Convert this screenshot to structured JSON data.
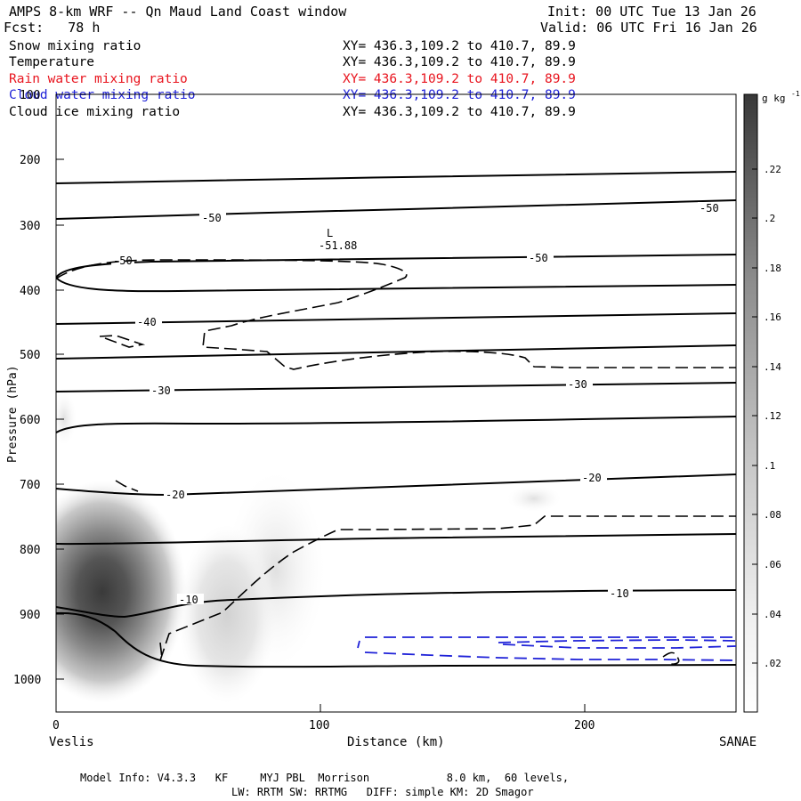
{
  "header": {
    "title": "AMPS 8-km WRF -- Qn Maud Land Coast window",
    "init": "Init: 00 UTC Tue 13 Jan 26",
    "fcst": "Fcst:   78 h",
    "valid": "Valid: 06 UTC Fri 16 Jan 26"
  },
  "fields": [
    {
      "name": "Snow mixing ratio",
      "xy": "XY= 436.3,109.2 to 410.7, 89.9",
      "color": "#000000"
    },
    {
      "name": "Temperature",
      "xy": "XY= 436.3,109.2 to 410.7, 89.9",
      "color": "#000000"
    },
    {
      "name": "Rain water mixing ratio",
      "xy": "XY= 436.3,109.2 to 410.7, 89.9",
      "color": "#e8141e"
    },
    {
      "name": "Cloud water mixing ratio",
      "xy": "XY= 436.3,109.2 to 410.7, 89.9",
      "color": "#1f22d8"
    },
    {
      "name": "Cloud ice mixing ratio",
      "xy": "XY= 436.3,109.2 to 410.7, 89.9",
      "color": "#000000"
    }
  ],
  "chart_data": {
    "type": "cross-section",
    "xlabel": "Distance (km)",
    "ylabel": "Pressure (hPa)",
    "xlim": [
      0,
      257
    ],
    "ylim": [
      1050,
      100
    ],
    "xticks": [
      0,
      100,
      200
    ],
    "yticks": [
      100,
      200,
      300,
      400,
      500,
      600,
      700,
      800,
      900,
      1000
    ],
    "left_endpoint": "Veslis",
    "right_endpoint": "SANAE",
    "low_label": "L",
    "low_value": "-51.88",
    "contour_labels": [
      "-50",
      "-50",
      "-50",
      "-50",
      "-40",
      "-30",
      "-30",
      "-20",
      "-20",
      "-10",
      "-10"
    ],
    "colorbar": {
      "unit": "g kg",
      "unit_exp": "-1",
      "min": 0,
      "max": 0.24,
      "ticks": [
        ".02",
        ".04",
        ".06",
        ".08",
        ".1",
        ".12",
        ".14",
        ".16",
        ".18",
        ".2",
        ".22"
      ]
    }
  },
  "footer": {
    "line1": "Model Info: V4.3.3   KF     MYJ PBL  Morrison            8.0 km,  60 levels,",
    "line2": "LW: RRTM SW: RRTMG   DIFF: simple KM: 2D Smagor"
  }
}
